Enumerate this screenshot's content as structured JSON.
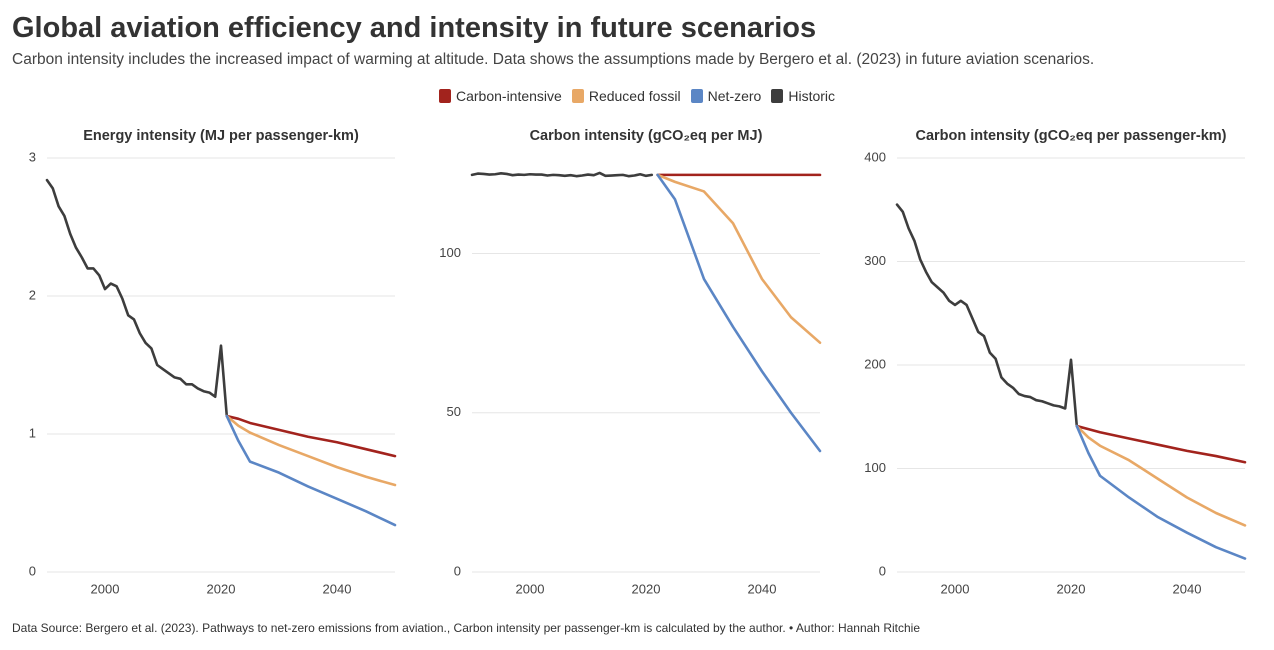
{
  "title": "Global aviation efficiency and intensity in future scenarios",
  "subtitle": "Carbon intensity includes the increased impact of warming at altitude. Data shows the assumptions made by Bergero et al. (2023) in future aviation scenarios.",
  "source": "Data Source: Bergero et al. (2023). Pathways to net-zero emissions from aviation., Carbon intensity per passenger-km is calculated by the author. • Author: Hannah Ritchie",
  "chart_data": [
    {
      "type": "line",
      "title": "Energy intensity (MJ per passenger-km)",
      "xlim": [
        1990,
        2050
      ],
      "xticks": [
        2000,
        2020,
        2040
      ],
      "ylim": [
        0,
        3
      ],
      "yticks": [
        0,
        1,
        2,
        3
      ],
      "grid": true,
      "series": [
        {
          "name": "Carbon-intensive",
          "color": "#a2231d",
          "x": [
            2021,
            2023,
            2025,
            2030,
            2035,
            2040,
            2045,
            2050
          ],
          "values": [
            1.13,
            1.11,
            1.08,
            1.03,
            0.98,
            0.94,
            0.89,
            0.84
          ]
        },
        {
          "name": "Reduced fossil",
          "color": "#e8a866",
          "x": [
            2021,
            2023,
            2025,
            2030,
            2035,
            2040,
            2045,
            2050
          ],
          "values": [
            1.13,
            1.06,
            1.01,
            0.92,
            0.84,
            0.76,
            0.69,
            0.63
          ]
        },
        {
          "name": "Net-zero",
          "color": "#5b86c5",
          "x": [
            2021,
            2023,
            2025,
            2030,
            2035,
            2040,
            2045,
            2050
          ],
          "values": [
            1.13,
            0.95,
            0.8,
            0.72,
            0.62,
            0.53,
            0.44,
            0.34
          ]
        },
        {
          "name": "Historic",
          "color": "#3d3d3d",
          "x": [
            1990,
            1991,
            1992,
            1993,
            1994,
            1995,
            1996,
            1997,
            1998,
            1999,
            2000,
            2001,
            2002,
            2003,
            2004,
            2005,
            2006,
            2007,
            2008,
            2009,
            2010,
            2011,
            2012,
            2013,
            2014,
            2015,
            2016,
            2017,
            2018,
            2019,
            2020,
            2021
          ],
          "values": [
            2.84,
            2.78,
            2.65,
            2.58,
            2.45,
            2.35,
            2.28,
            2.2,
            2.2,
            2.15,
            2.05,
            2.09,
            2.07,
            1.98,
            1.86,
            1.83,
            1.73,
            1.66,
            1.62,
            1.5,
            1.47,
            1.44,
            1.41,
            1.4,
            1.36,
            1.36,
            1.33,
            1.31,
            1.3,
            1.27,
            1.64,
            1.13
          ]
        }
      ]
    },
    {
      "type": "line",
      "title": "Carbon intensity (gCO₂eq per MJ)",
      "xlim": [
        1990,
        2050
      ],
      "xticks": [
        2000,
        2020,
        2040
      ],
      "ylim": [
        0,
        130
      ],
      "yticks": [
        0,
        50,
        100
      ],
      "grid": true,
      "series": [
        {
          "name": "Carbon-intensive",
          "color": "#a2231d",
          "x": [
            2022,
            2025,
            2030,
            2035,
            2040,
            2045,
            2050
          ],
          "values": [
            124.7,
            124.7,
            124.7,
            124.7,
            124.7,
            124.7,
            124.7
          ]
        },
        {
          "name": "Reduced fossil",
          "color": "#e8a866",
          "x": [
            2022,
            2025,
            2030,
            2035,
            2040,
            2045,
            2050
          ],
          "values": [
            124.7,
            122.5,
            119.5,
            109.5,
            92,
            80,
            72
          ]
        },
        {
          "name": "Net-zero",
          "color": "#5b86c5",
          "x": [
            2022,
            2025,
            2030,
            2035,
            2040,
            2045,
            2050
          ],
          "values": [
            124.7,
            117,
            92,
            77,
            63,
            50,
            38
          ]
        },
        {
          "name": "Historic",
          "color": "#3d3d3d",
          "x": [
            1990,
            1991,
            1992,
            1993,
            1994,
            1995,
            1996,
            1997,
            1998,
            1999,
            2000,
            2001,
            2002,
            2003,
            2004,
            2005,
            2006,
            2007,
            2008,
            2009,
            2010,
            2011,
            2012,
            2013,
            2014,
            2015,
            2016,
            2017,
            2018,
            2019,
            2020,
            2021
          ],
          "values": [
            124.7,
            125.1,
            125.0,
            124.8,
            124.9,
            125.2,
            125.0,
            124.6,
            124.8,
            124.7,
            124.9,
            124.8,
            124.8,
            124.5,
            124.7,
            124.6,
            124.4,
            124.6,
            124.3,
            124.5,
            124.8,
            124.6,
            125.3,
            124.4,
            124.5,
            124.6,
            124.7,
            124.3,
            124.5,
            124.9,
            124.4,
            124.7
          ]
        }
      ]
    },
    {
      "type": "line",
      "title": "Carbon intensity (gCO₂eq per passenger-km)",
      "xlim": [
        1990,
        2050
      ],
      "xticks": [
        2000,
        2020,
        2040
      ],
      "ylim": [
        0,
        400
      ],
      "yticks": [
        0,
        100,
        200,
        300,
        400
      ],
      "grid": true,
      "series": [
        {
          "name": "Carbon-intensive",
          "color": "#a2231d",
          "x": [
            2021,
            2023,
            2025,
            2030,
            2035,
            2040,
            2045,
            2050
          ],
          "values": [
            141,
            138,
            135,
            129,
            123,
            117,
            112,
            106
          ]
        },
        {
          "name": "Reduced fossil",
          "color": "#e8a866",
          "x": [
            2021,
            2023,
            2025,
            2030,
            2035,
            2040,
            2045,
            2050
          ],
          "values": [
            141,
            130,
            122,
            108,
            90,
            72,
            57,
            45
          ]
        },
        {
          "name": "Net-zero",
          "color": "#5b86c5",
          "x": [
            2021,
            2023,
            2025,
            2030,
            2035,
            2040,
            2045,
            2050
          ],
          "values": [
            141,
            115,
            93,
            72,
            53,
            38,
            24,
            13
          ]
        },
        {
          "name": "Historic",
          "color": "#3d3d3d",
          "x": [
            1990,
            1991,
            1992,
            1993,
            1994,
            1995,
            1996,
            1997,
            1998,
            1999,
            2000,
            2001,
            2002,
            2003,
            2004,
            2005,
            2006,
            2007,
            2008,
            2009,
            2010,
            2011,
            2012,
            2013,
            2014,
            2015,
            2016,
            2017,
            2018,
            2019,
            2020,
            2021
          ],
          "values": [
            355,
            348,
            332,
            320,
            302,
            290,
            280,
            275,
            270,
            262,
            258,
            262,
            258,
            245,
            232,
            228,
            212,
            206,
            188,
            182,
            178,
            172,
            170,
            169,
            166,
            165,
            163,
            161,
            160,
            158,
            205,
            141
          ]
        }
      ]
    }
  ]
}
